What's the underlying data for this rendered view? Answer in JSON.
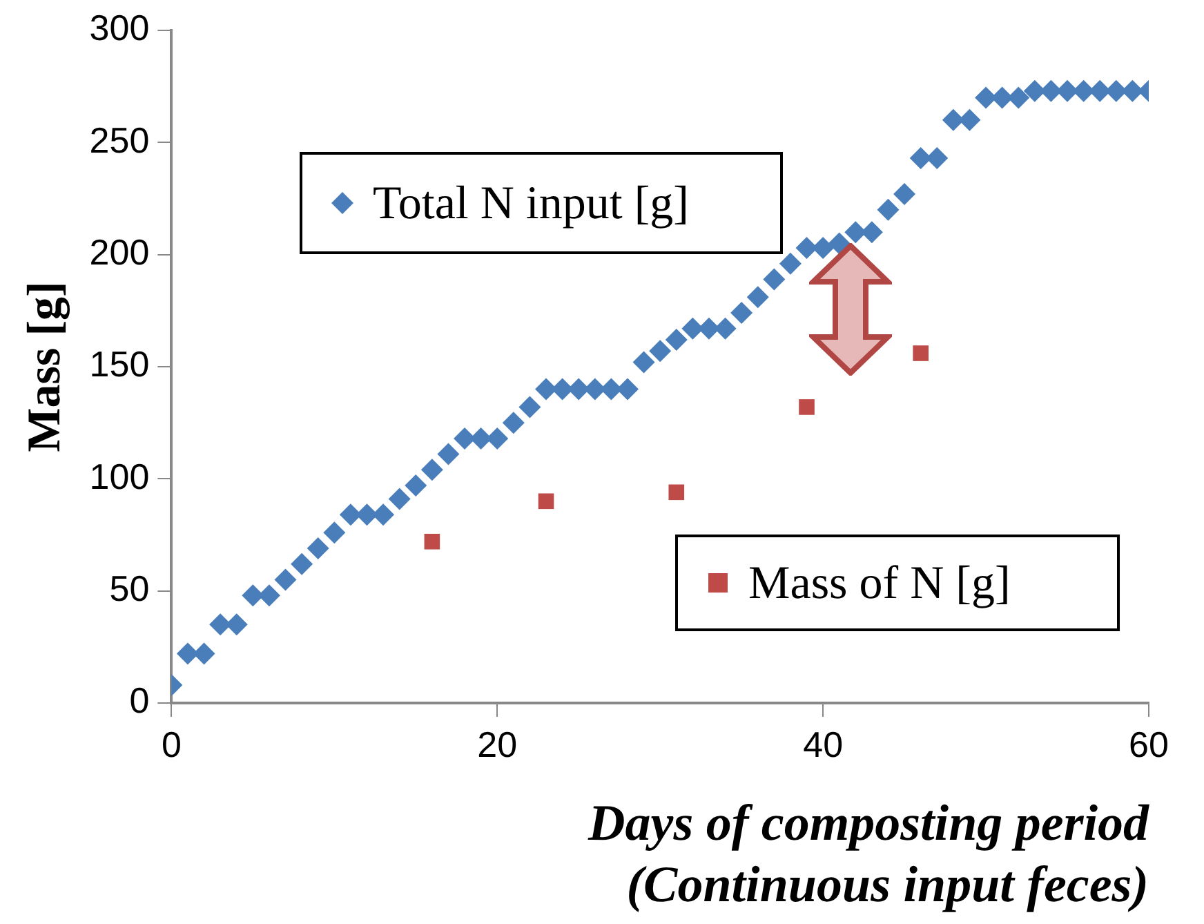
{
  "chart_data": {
    "type": "scatter",
    "xlabel": "Days of composting period\n(Continuous input feces)",
    "ylabel": "Mass [g]",
    "xlim": [
      0,
      60
    ],
    "xticks": [
      0,
      20,
      40,
      60
    ],
    "ylim": [
      0,
      300
    ],
    "yticks": [
      0,
      50,
      100,
      150,
      200,
      250,
      300
    ],
    "grid": false,
    "legend": "right",
    "series": [
      {
        "name": "Total N input [g]",
        "color": "#4a7ebb",
        "marker": "diamond",
        "x": [
          0,
          1,
          2,
          3,
          4,
          5,
          6,
          7,
          8,
          9,
          10,
          11,
          12,
          13,
          14,
          15,
          16,
          17,
          18,
          19,
          20,
          21,
          22,
          23,
          24,
          25,
          26,
          27,
          28,
          29,
          30,
          31,
          32,
          33,
          34,
          35,
          36,
          37,
          38,
          39,
          40,
          41,
          42,
          43,
          44,
          45,
          46,
          47,
          48,
          49,
          50,
          51,
          52,
          53,
          54,
          55,
          56,
          57,
          58,
          59,
          60
        ],
        "values": [
          8,
          22,
          22,
          35,
          35,
          48,
          48,
          55,
          62,
          69,
          76,
          84,
          84,
          84,
          91,
          97,
          104,
          111,
          118,
          118,
          118,
          125,
          132,
          140,
          140,
          140,
          140,
          140,
          140,
          152,
          157,
          162,
          167,
          167,
          167,
          174,
          181,
          189,
          196,
          203,
          203,
          205,
          210,
          210,
          220,
          227,
          243,
          243,
          260,
          260,
          270,
          270,
          270,
          273,
          273,
          273,
          273,
          273,
          273,
          273,
          273
        ]
      },
      {
        "name": "Mass of N [g]",
        "color": "#be4b48",
        "marker": "square",
        "x": [
          16,
          23,
          31,
          39,
          46
        ],
        "values": [
          72,
          90,
          94,
          132,
          156
        ]
      }
    ]
  }
}
